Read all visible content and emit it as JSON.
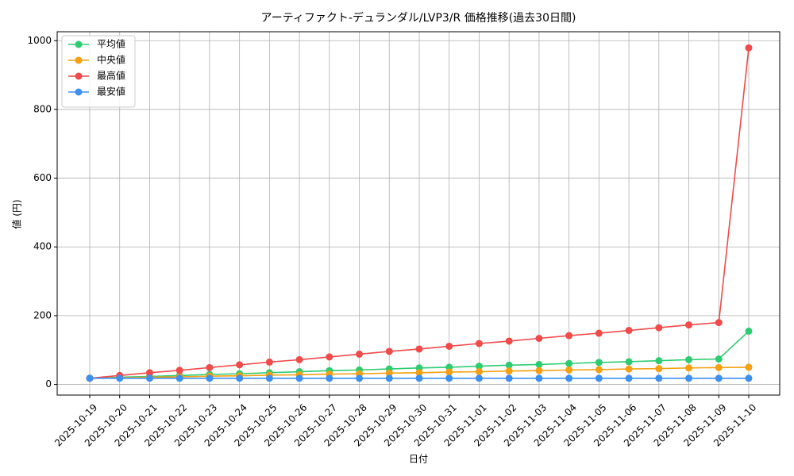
{
  "chart_data": {
    "type": "line",
    "title": "アーティファクト-デュランダル/LVP3/R 価格推移(過去30日間)",
    "x_label": "日付",
    "y_label": "値 (円)",
    "categories": [
      "2025-10-19",
      "2025-10-20",
      "2025-10-21",
      "2025-10-22",
      "2025-10-23",
      "2025-10-24",
      "2025-10-25",
      "2025-10-26",
      "2025-10-27",
      "2025-10-28",
      "2025-10-29",
      "2025-10-30",
      "2025-10-31",
      "2025-11-01",
      "2025-11-02",
      "2025-11-03",
      "2025-11-04",
      "2025-11-05",
      "2025-11-06",
      "2025-11-07",
      "2025-11-08",
      "2025-11-09",
      "2025-11-10"
    ],
    "series": [
      {
        "name": "平均値",
        "color": "#2ecc71",
        "values": [
          18,
          21,
          23,
          26,
          29,
          31,
          34,
          37,
          40,
          42,
          45,
          48,
          50,
          53,
          56,
          58,
          61,
          64,
          66,
          69,
          72,
          74,
          155
        ]
      },
      {
        "name": "中央値",
        "color": "#f5a012",
        "values": [
          18,
          19,
          21,
          22,
          24,
          25,
          27,
          28,
          30,
          31,
          33,
          34,
          36,
          37,
          39,
          40,
          42,
          43,
          45,
          46,
          48,
          49,
          50
        ]
      },
      {
        "name": "最高値",
        "color": "#f04a4a",
        "values": [
          18,
          26,
          34,
          41,
          49,
          57,
          65,
          72,
          80,
          88,
          96,
          103,
          111,
          119,
          126,
          134,
          142,
          149,
          157,
          165,
          173,
          180,
          979
        ]
      },
      {
        "name": "最安値",
        "color": "#3d8ff0",
        "values": [
          18,
          18,
          18,
          18,
          18,
          18,
          18,
          18,
          18,
          18,
          18,
          18,
          18,
          18,
          18,
          18,
          18,
          18,
          18,
          18,
          18,
          18,
          18
        ]
      }
    ],
    "ylim": [
      -31,
      1026
    ],
    "yticks": [
      0,
      200,
      400,
      600,
      800,
      1000
    ],
    "grid": true,
    "legend": "upper-left"
  }
}
